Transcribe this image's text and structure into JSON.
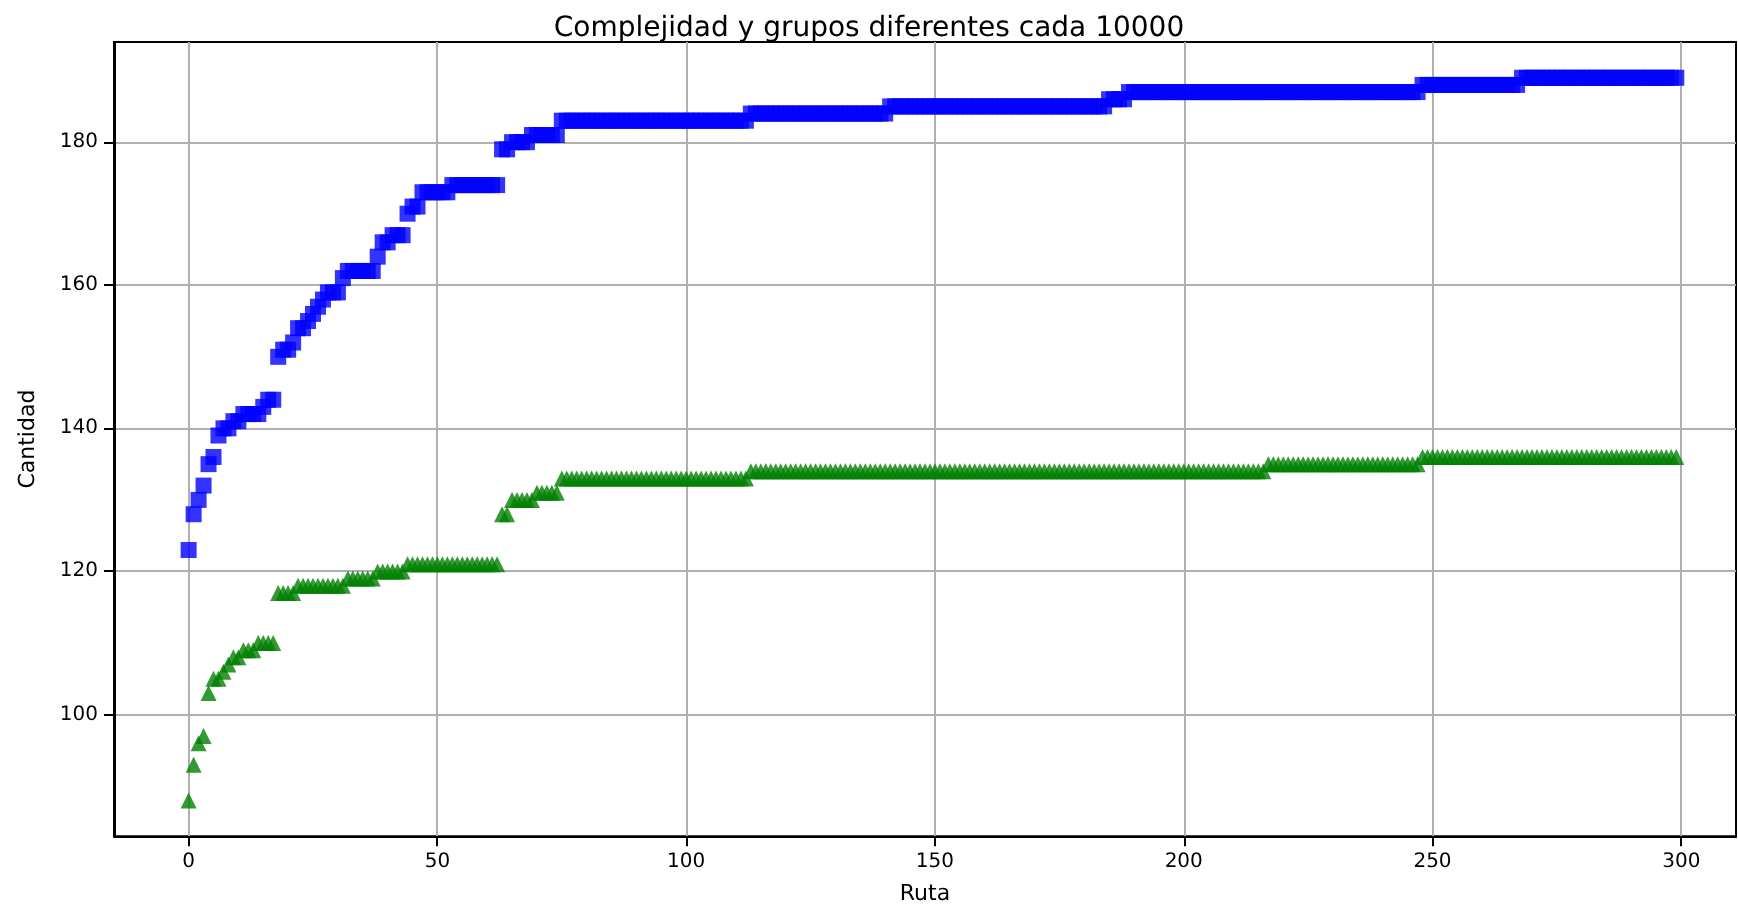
{
  "chart_data": {
    "type": "scatter",
    "title": "Complejidad y grupos diferentes cada 10000",
    "xlabel": "Ruta",
    "ylabel": "Cantidad",
    "xlim": [
      -15,
      311
    ],
    "xticks": [
      0,
      50,
      100,
      150,
      200,
      250,
      300
    ],
    "ylim": [
      83,
      194
    ],
    "yticks": [
      100,
      120,
      140,
      160,
      180
    ],
    "grid": true,
    "x": [
      0,
      1,
      2,
      3,
      4,
      5,
      6,
      7,
      8,
      9,
      10,
      11,
      12,
      13,
      14,
      15,
      16,
      17,
      18,
      19,
      20,
      21,
      22,
      23,
      24,
      25,
      26,
      27,
      28,
      29,
      30,
      31,
      32,
      33,
      34,
      35,
      36,
      37,
      38,
      39,
      40,
      41,
      42,
      43,
      44,
      45,
      46,
      47,
      48,
      49,
      50,
      51,
      52,
      53,
      54,
      55,
      56,
      57,
      58,
      59,
      60,
      61,
      62,
      63,
      64,
      65,
      66,
      67,
      68,
      69,
      70,
      71,
      72,
      73,
      74,
      75,
      76,
      77,
      78,
      79,
      80,
      81,
      82,
      83,
      84,
      85,
      86,
      87,
      88,
      89,
      90,
      91,
      92,
      93,
      94,
      95,
      96,
      97,
      98,
      99,
      100,
      101,
      102,
      103,
      104,
      105,
      106,
      107,
      108,
      109,
      110,
      111,
      112,
      113,
      114,
      115,
      116,
      117,
      118,
      119,
      120,
      121,
      122,
      123,
      124,
      125,
      126,
      127,
      128,
      129,
      130,
      131,
      132,
      133,
      134,
      135,
      136,
      137,
      138,
      139,
      140,
      141,
      142,
      143,
      144,
      145,
      146,
      147,
      148,
      149,
      150,
      151,
      152,
      153,
      154,
      155,
      156,
      157,
      158,
      159,
      160,
      161,
      162,
      163,
      164,
      165,
      166,
      167,
      168,
      169,
      170,
      171,
      172,
      173,
      174,
      175,
      176,
      177,
      178,
      179,
      180,
      181,
      182,
      183,
      184,
      185,
      186,
      187,
      188,
      189,
      190,
      191,
      192,
      193,
      194,
      195,
      196,
      197,
      198,
      199,
      200,
      201,
      202,
      203,
      204,
      205,
      206,
      207,
      208,
      209,
      210,
      211,
      212,
      213,
      214,
      215,
      216,
      217,
      218,
      219,
      220,
      221,
      222,
      223,
      224,
      225,
      226,
      227,
      228,
      229,
      230,
      231,
      232,
      233,
      234,
      235,
      236,
      237,
      238,
      239,
      240,
      241,
      242,
      243,
      244,
      245,
      246,
      247,
      248,
      249,
      250,
      251,
      252,
      253,
      254,
      255,
      256,
      257,
      258,
      259,
      260,
      261,
      262,
      263,
      264,
      265,
      266,
      267,
      268,
      269,
      270,
      271,
      272,
      273,
      274,
      275,
      276,
      277,
      278,
      279,
      280,
      281,
      282,
      283,
      284,
      285,
      286,
      287,
      288,
      289,
      290,
      291,
      292,
      293,
      294,
      295,
      296,
      297,
      298,
      299
    ],
    "series": [
      {
        "color": "#0000ff",
        "marker": "square",
        "values": [
          123,
          128,
          130,
          132,
          135,
          136,
          139,
          140,
          140,
          141,
          141,
          142,
          142,
          142,
          142,
          143,
          144,
          144,
          150,
          151,
          151,
          152,
          154,
          154,
          155,
          156,
          157,
          158,
          159,
          159,
          159,
          161,
          162,
          162,
          162,
          162,
          162,
          162,
          164,
          166,
          166,
          167,
          167,
          167,
          170,
          171,
          171,
          173,
          173,
          173,
          173,
          173,
          173,
          174,
          174,
          174,
          174,
          174,
          174,
          174,
          174,
          174,
          174,
          179,
          179,
          180,
          180,
          180,
          180,
          181,
          181,
          181,
          181,
          181,
          181,
          183,
          183,
          183,
          183,
          183,
          183,
          183,
          183,
          183,
          183,
          183,
          183,
          183,
          183,
          183,
          183,
          183,
          183,
          183,
          183,
          183,
          183,
          183,
          183,
          183,
          183,
          183,
          183,
          183,
          183,
          183,
          183,
          183,
          183,
          183,
          183,
          183,
          183,
          184,
          184,
          184,
          184,
          184,
          184,
          184,
          184,
          184,
          184,
          184,
          184,
          184,
          184,
          184,
          184,
          184,
          184,
          184,
          184,
          184,
          184,
          184,
          184,
          184,
          184,
          184,
          184,
          185,
          185,
          185,
          185,
          185,
          185,
          185,
          185,
          185,
          185,
          185,
          185,
          185,
          185,
          185,
          185,
          185,
          185,
          185,
          185,
          185,
          185,
          185,
          185,
          185,
          185,
          185,
          185,
          185,
          185,
          185,
          185,
          185,
          185,
          185,
          185,
          185,
          185,
          185,
          185,
          185,
          185,
          185,
          185,
          186,
          186,
          186,
          186,
          187,
          187,
          187,
          187,
          187,
          187,
          187,
          187,
          187,
          187,
          187,
          187,
          187,
          187,
          187,
          187,
          187,
          187,
          187,
          187,
          187,
          187,
          187,
          187,
          187,
          187,
          187,
          187,
          187,
          187,
          187,
          187,
          187,
          187,
          187,
          187,
          187,
          187,
          187,
          187,
          187,
          187,
          187,
          187,
          187,
          187,
          187,
          187,
          187,
          187,
          187,
          187,
          187,
          187,
          187,
          187,
          187,
          187,
          187,
          188,
          188,
          188,
          188,
          188,
          188,
          188,
          188,
          188,
          188,
          188,
          188,
          188,
          188,
          188,
          188,
          188,
          188,
          188,
          188,
          189,
          189,
          189,
          189,
          189,
          189,
          189,
          189,
          189,
          189,
          189,
          189,
          189,
          189,
          189,
          189,
          189,
          189,
          189,
          189,
          189,
          189,
          189,
          189,
          189,
          189,
          189,
          189,
          189,
          189,
          189,
          189
        ]
      },
      {
        "color": "#008000",
        "marker": "triangle",
        "values": [
          88,
          93,
          96,
          97,
          103,
          105,
          105,
          106,
          107,
          108,
          108,
          109,
          109,
          109,
          110,
          110,
          110,
          110,
          117,
          117,
          117,
          117,
          118,
          118,
          118,
          118,
          118,
          118,
          118,
          118,
          118,
          118,
          119,
          119,
          119,
          119,
          119,
          119,
          120,
          120,
          120,
          120,
          120,
          120,
          121,
          121,
          121,
          121,
          121,
          121,
          121,
          121,
          121,
          121,
          121,
          121,
          121,
          121,
          121,
          121,
          121,
          121,
          121,
          128,
          128,
          130,
          130,
          130,
          130,
          130,
          131,
          131,
          131,
          131,
          131,
          133,
          133,
          133,
          133,
          133,
          133,
          133,
          133,
          133,
          133,
          133,
          133,
          133,
          133,
          133,
          133,
          133,
          133,
          133,
          133,
          133,
          133,
          133,
          133,
          133,
          133,
          133,
          133,
          133,
          133,
          133,
          133,
          133,
          133,
          133,
          133,
          133,
          133,
          134,
          134,
          134,
          134,
          134,
          134,
          134,
          134,
          134,
          134,
          134,
          134,
          134,
          134,
          134,
          134,
          134,
          134,
          134,
          134,
          134,
          134,
          134,
          134,
          134,
          134,
          134,
          134,
          134,
          134,
          134,
          134,
          134,
          134,
          134,
          134,
          134,
          134,
          134,
          134,
          134,
          134,
          134,
          134,
          134,
          134,
          134,
          134,
          134,
          134,
          134,
          134,
          134,
          134,
          134,
          134,
          134,
          134,
          134,
          134,
          134,
          134,
          134,
          134,
          134,
          134,
          134,
          134,
          134,
          134,
          134,
          134,
          134,
          134,
          134,
          134,
          134,
          134,
          134,
          134,
          134,
          134,
          134,
          134,
          134,
          134,
          134,
          134,
          134,
          134,
          134,
          134,
          134,
          134,
          134,
          134,
          134,
          134,
          134,
          134,
          134,
          134,
          134,
          134,
          135,
          135,
          135,
          135,
          135,
          135,
          135,
          135,
          135,
          135,
          135,
          135,
          135,
          135,
          135,
          135,
          135,
          135,
          135,
          135,
          135,
          135,
          135,
          135,
          135,
          135,
          135,
          135,
          135,
          135,
          135,
          136,
          136,
          136,
          136,
          136,
          136,
          136,
          136,
          136,
          136,
          136,
          136,
          136,
          136,
          136,
          136,
          136,
          136,
          136,
          136,
          136,
          136,
          136,
          136,
          136,
          136,
          136,
          136,
          136,
          136,
          136,
          136,
          136,
          136,
          136,
          136,
          136,
          136,
          136,
          136,
          136,
          136,
          136,
          136,
          136,
          136,
          136,
          136,
          136,
          136,
          136,
          136
        ]
      }
    ]
  }
}
